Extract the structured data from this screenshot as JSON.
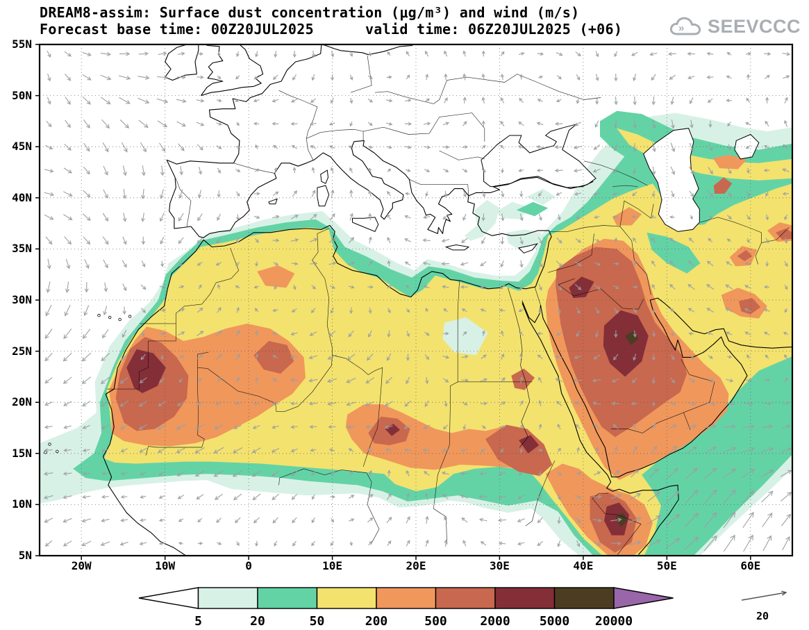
{
  "header": {
    "title_line1": "DREAM8-assim: Surface dust concentration (μg/m³) and wind (m/s)",
    "title_line2": "Forecast base time: 00Z20JUL2025      valid time: 06Z20JUL2025 (+06)",
    "logo_text": "SEEVCCC"
  },
  "chart_data": {
    "type": "heatmap",
    "title": "DREAM8-assim: Surface dust concentration (μg/m³) and wind (m/s)",
    "model": "DREAM8-assim",
    "variable": "Surface dust concentration",
    "units": "μg/m³",
    "wind_units": "m/s",
    "forecast_base_time": "00Z20JUL2025",
    "valid_time": "06Z20JUL2025",
    "lead": "+06",
    "lon_range_deg": [
      -25,
      65
    ],
    "lat_range_deg": [
      5,
      55
    ],
    "x_ticks": [
      {
        "label": "20W",
        "lon": -20
      },
      {
        "label": "10W",
        "lon": -10
      },
      {
        "label": "0",
        "lon": 0
      },
      {
        "label": "10E",
        "lon": 10
      },
      {
        "label": "20E",
        "lon": 20
      },
      {
        "label": "30E",
        "lon": 30
      },
      {
        "label": "40E",
        "lon": 40
      },
      {
        "label": "50E",
        "lon": 50
      },
      {
        "label": "60E",
        "lon": 60
      }
    ],
    "y_ticks": [
      {
        "label": "55N",
        "lat": 55
      },
      {
        "label": "50N",
        "lat": 50
      },
      {
        "label": "45N",
        "lat": 45
      },
      {
        "label": "40N",
        "lat": 40
      },
      {
        "label": "35N",
        "lat": 35
      },
      {
        "label": "30N",
        "lat": 30
      },
      {
        "label": "25N",
        "lat": 25
      },
      {
        "label": "20N",
        "lat": 20
      },
      {
        "label": "15N",
        "lat": 15
      },
      {
        "label": "10N",
        "lat": 10
      },
      {
        "label": "5N",
        "lat": 5
      }
    ],
    "contour_levels": [
      5,
      20,
      50,
      200,
      500,
      2000,
      5000,
      20000
    ],
    "palette": [
      "#ffffff",
      "#d8f1e6",
      "#63d3a6",
      "#f3e26e",
      "#f0975c",
      "#c8684e",
      "#842e38",
      "#4c3d22",
      "#9966aa"
    ],
    "wind_reference": {
      "value": 20,
      "units": "m/s"
    },
    "grid": "dotted graticule every 5 deg lat / 10 deg lon",
    "legend_position": "bottom"
  },
  "colorbar": {
    "labels": [
      "5",
      "20",
      "50",
      "200",
      "500",
      "2000",
      "5000",
      "20000"
    ]
  },
  "wind_legend": {
    "label": "20"
  },
  "map": {
    "arrow_color": "#9a9fa3",
    "coast_color": "#000000",
    "sea_color": "#ffffff",
    "grid_color": "#555555"
  }
}
